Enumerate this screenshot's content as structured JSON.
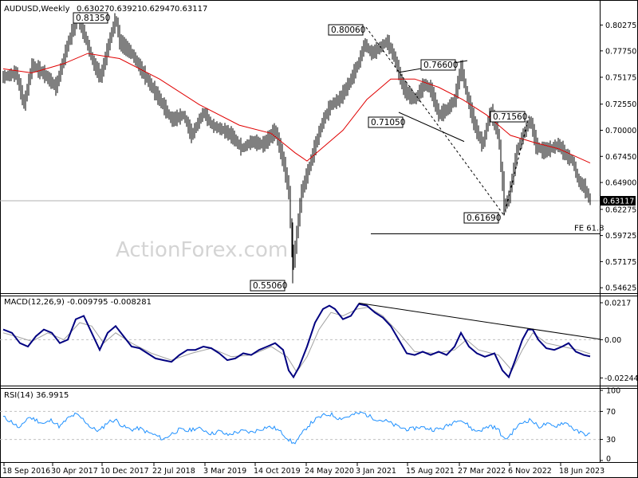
{
  "chart_data": [
    {
      "type": "candlestick",
      "title": "AUDUSD,Weekly",
      "ohlc_readout": [
        "0.63027",
        "0.63921",
        "0.62947",
        "0.63117"
      ],
      "y_ticks": [
        "0.80275",
        "0.77750",
        "0.75175",
        "0.72550",
        "0.70000",
        "0.67450",
        "0.64900",
        "0.62275",
        "0.59725",
        "0.57175",
        "0.54625"
      ],
      "ylim": [
        0.5425,
        0.8225
      ],
      "last_price": "0.63117",
      "last_price_value": 0.63117,
      "moving_average_color": "#e00000",
      "price_color": "#000000",
      "levels": [
        {
          "label": "0.81350",
          "value": 0.8135,
          "t": 90
        },
        {
          "label": "0.80060",
          "value": 0.8006,
          "t": 455
        },
        {
          "label": "0.76600",
          "value": 0.766,
          "t": 578
        },
        {
          "label": "0.71050",
          "value": 0.7105,
          "t": 510
        },
        {
          "label": "0.71560",
          "value": 0.7156,
          "t": 658
        },
        {
          "label": "0.61690",
          "value": 0.6169,
          "t": 632
        },
        {
          "label": "0.55060",
          "value": 0.5506,
          "t": 367
        }
      ],
      "fe_label": "FE 61.8",
      "fe_value": 0.5989,
      "price_path": [
        [
          4,
          0.752
        ],
        [
          20,
          0.756
        ],
        [
          30,
          0.725
        ],
        [
          40,
          0.764
        ],
        [
          55,
          0.755
        ],
        [
          70,
          0.742
        ],
        [
          85,
          0.785
        ],
        [
          97,
          0.811
        ],
        [
          107,
          0.79
        ],
        [
          117,
          0.765
        ],
        [
          126,
          0.752
        ],
        [
          138,
          0.79
        ],
        [
          145,
          0.81
        ],
        [
          150,
          0.786
        ],
        [
          165,
          0.775
        ],
        [
          180,
          0.755
        ],
        [
          200,
          0.73
        ],
        [
          215,
          0.71
        ],
        [
          230,
          0.715
        ],
        [
          240,
          0.695
        ],
        [
          255,
          0.718
        ],
        [
          265,
          0.705
        ],
        [
          280,
          0.7
        ],
        [
          290,
          0.695
        ],
        [
          303,
          0.682
        ],
        [
          315,
          0.689
        ],
        [
          330,
          0.686
        ],
        [
          345,
          0.7
        ],
        [
          355,
          0.67
        ],
        [
          362,
          0.64
        ],
        [
          367,
          0.565
        ],
        [
          372,
          0.6
        ],
        [
          378,
          0.64
        ],
        [
          386,
          0.66
        ],
        [
          395,
          0.685
        ],
        [
          405,
          0.71
        ],
        [
          415,
          0.725
        ],
        [
          425,
          0.73
        ],
        [
          437,
          0.745
        ],
        [
          450,
          0.767
        ],
        [
          457,
          0.785
        ],
        [
          465,
          0.775
        ],
        [
          475,
          0.78
        ],
        [
          485,
          0.787
        ],
        [
          495,
          0.77
        ],
        [
          505,
          0.742
        ],
        [
          512,
          0.735
        ],
        [
          520,
          0.73
        ],
        [
          532,
          0.745
        ],
        [
          540,
          0.74
        ],
        [
          550,
          0.715
        ],
        [
          560,
          0.72
        ],
        [
          570,
          0.73
        ],
        [
          578,
          0.762
        ],
        [
          585,
          0.735
        ],
        [
          595,
          0.705
        ],
        [
          605,
          0.685
        ],
        [
          615,
          0.72
        ],
        [
          625,
          0.695
        ],
        [
          632,
          0.625
        ],
        [
          638,
          0.635
        ],
        [
          648,
          0.68
        ],
        [
          658,
          0.7
        ],
        [
          665,
          0.71
        ],
        [
          672,
          0.685
        ],
        [
          680,
          0.68
        ],
        [
          690,
          0.682
        ],
        [
          700,
          0.686
        ],
        [
          710,
          0.675
        ],
        [
          718,
          0.67
        ],
        [
          725,
          0.65
        ],
        [
          732,
          0.645
        ],
        [
          740,
          0.631
        ]
      ],
      "ma_path": [
        [
          4,
          0.76
        ],
        [
          40,
          0.756
        ],
        [
          80,
          0.765
        ],
        [
          110,
          0.775
        ],
        [
          150,
          0.77
        ],
        [
          200,
          0.75
        ],
        [
          250,
          0.725
        ],
        [
          300,
          0.705
        ],
        [
          340,
          0.697
        ],
        [
          370,
          0.678
        ],
        [
          385,
          0.67
        ],
        [
          400,
          0.68
        ],
        [
          430,
          0.7
        ],
        [
          460,
          0.73
        ],
        [
          490,
          0.75
        ],
        [
          520,
          0.75
        ],
        [
          550,
          0.742
        ],
        [
          580,
          0.73
        ],
        [
          610,
          0.715
        ],
        [
          640,
          0.695
        ],
        [
          670,
          0.688
        ],
        [
          700,
          0.682
        ],
        [
          740,
          0.668
        ]
      ],
      "trendlines": [
        {
          "t1": 459,
          "v1": 0.8006,
          "t2": 632,
          "v2": 0.6169,
          "dashed": true
        },
        {
          "t1": 632,
          "v1": 0.6169,
          "t2": 664,
          "v2": 0.7156,
          "dashed": true
        },
        {
          "t1": 500,
          "v1": 0.7565,
          "t2": 586,
          "v2": 0.768,
          "dashed": false
        },
        {
          "t1": 500,
          "v1": 0.7175,
          "t2": 582,
          "v2": 0.689,
          "dashed": false
        }
      ],
      "watermark": "ActionForex.com"
    },
    {
      "type": "line",
      "title": "MACD(12,26,9) -0.009795 -0.008281",
      "y_ticks": [
        "0.0217",
        "0.00",
        "-0.022445"
      ],
      "ylim": [
        -0.026,
        0.0245
      ],
      "macd_color": "#000080",
      "signal_color": "#a0a0a0",
      "macd": [
        [
          4,
          0.006
        ],
        [
          15,
          0.004
        ],
        [
          25,
          -0.002
        ],
        [
          35,
          -0.004
        ],
        [
          45,
          0.002
        ],
        [
          55,
          0.006
        ],
        [
          65,
          0.004
        ],
        [
          75,
          -0.002
        ],
        [
          85,
          0.0
        ],
        [
          95,
          0.012
        ],
        [
          105,
          0.014
        ],
        [
          115,
          0.004
        ],
        [
          125,
          -0.006
        ],
        [
          135,
          0.004
        ],
        [
          145,
          0.008
        ],
        [
          155,
          0.002
        ],
        [
          165,
          -0.004
        ],
        [
          175,
          -0.005
        ],
        [
          185,
          -0.008
        ],
        [
          195,
          -0.011
        ],
        [
          205,
          -0.012
        ],
        [
          215,
          -0.013
        ],
        [
          225,
          -0.009
        ],
        [
          235,
          -0.006
        ],
        [
          245,
          -0.006
        ],
        [
          255,
          -0.004
        ],
        [
          265,
          -0.005
        ],
        [
          275,
          -0.008
        ],
        [
          285,
          -0.012
        ],
        [
          295,
          -0.011
        ],
        [
          305,
          -0.008
        ],
        [
          315,
          -0.009
        ],
        [
          325,
          -0.006
        ],
        [
          335,
          -0.004
        ],
        [
          345,
          -0.002
        ],
        [
          355,
          -0.006
        ],
        [
          362,
          -0.018
        ],
        [
          368,
          -0.022
        ],
        [
          375,
          -0.016
        ],
        [
          385,
          -0.004
        ],
        [
          395,
          0.01
        ],
        [
          405,
          0.018
        ],
        [
          413,
          0.02
        ],
        [
          420,
          0.018
        ],
        [
          430,
          0.012
        ],
        [
          440,
          0.014
        ],
        [
          450,
          0.021
        ],
        [
          460,
          0.02
        ],
        [
          470,
          0.016
        ],
        [
          480,
          0.013
        ],
        [
          490,
          0.008
        ],
        [
          500,
          0.0
        ],
        [
          510,
          -0.008
        ],
        [
          520,
          -0.009
        ],
        [
          530,
          -0.007
        ],
        [
          540,
          -0.009
        ],
        [
          550,
          -0.007
        ],
        [
          560,
          -0.009
        ],
        [
          570,
          -0.004
        ],
        [
          578,
          0.004
        ],
        [
          588,
          -0.004
        ],
        [
          598,
          -0.008
        ],
        [
          608,
          -0.01
        ],
        [
          620,
          -0.008
        ],
        [
          630,
          -0.018
        ],
        [
          638,
          -0.022
        ],
        [
          646,
          -0.012
        ],
        [
          655,
          0.0
        ],
        [
          662,
          0.006
        ],
        [
          668,
          0.006
        ],
        [
          675,
          0.0
        ],
        [
          685,
          -0.005
        ],
        [
          695,
          -0.006
        ],
        [
          705,
          -0.004
        ],
        [
          713,
          -0.002
        ],
        [
          722,
          -0.007
        ],
        [
          732,
          -0.009
        ],
        [
          740,
          -0.0098
        ]
      ],
      "signal": [
        [
          4,
          0.004
        ],
        [
          20,
          0.002
        ],
        [
          40,
          -0.001
        ],
        [
          60,
          0.004
        ],
        [
          80,
          0.0
        ],
        [
          100,
          0.01
        ],
        [
          115,
          0.008
        ],
        [
          130,
          -0.002
        ],
        [
          145,
          0.004
        ],
        [
          165,
          -0.002
        ],
        [
          190,
          -0.008
        ],
        [
          215,
          -0.012
        ],
        [
          240,
          -0.008
        ],
        [
          265,
          -0.005
        ],
        [
          290,
          -0.01
        ],
        [
          315,
          -0.009
        ],
        [
          340,
          -0.004
        ],
        [
          360,
          -0.01
        ],
        [
          372,
          -0.019
        ],
        [
          385,
          -0.01
        ],
        [
          400,
          0.006
        ],
        [
          415,
          0.016
        ],
        [
          430,
          0.014
        ],
        [
          448,
          0.018
        ],
        [
          462,
          0.019
        ],
        [
          480,
          0.014
        ],
        [
          500,
          0.004
        ],
        [
          520,
          -0.007
        ],
        [
          545,
          -0.008
        ],
        [
          570,
          -0.006
        ],
        [
          585,
          0.0
        ],
        [
          600,
          -0.006
        ],
        [
          625,
          -0.009
        ],
        [
          642,
          -0.018
        ],
        [
          655,
          -0.006
        ],
        [
          668,
          0.004
        ],
        [
          685,
          -0.002
        ],
        [
          705,
          -0.004
        ],
        [
          725,
          -0.006
        ],
        [
          740,
          -0.0083
        ]
      ],
      "trendline": {
        "t1": 450,
        "v1": 0.0215,
        "t2": 752,
        "v2": 0.0003
      }
    },
    {
      "type": "line",
      "title": "RSI(14) 36.9915",
      "y_ticks": [
        "100",
        "70",
        "30",
        "0"
      ],
      "ylim": [
        0,
        100
      ],
      "reference_levels": [
        70,
        30
      ],
      "color": "#1e90ff",
      "rsi": [
        [
          4,
          62
        ],
        [
          15,
          55
        ],
        [
          25,
          45
        ],
        [
          35,
          62
        ],
        [
          45,
          58
        ],
        [
          55,
          52
        ],
        [
          65,
          58
        ],
        [
          75,
          48
        ],
        [
          85,
          60
        ],
        [
          95,
          66
        ],
        [
          105,
          58
        ],
        [
          115,
          46
        ],
        [
          125,
          42
        ],
        [
          135,
          55
        ],
        [
          145,
          58
        ],
        [
          155,
          48
        ],
        [
          165,
          44
        ],
        [
          175,
          46
        ],
        [
          185,
          40
        ],
        [
          195,
          36
        ],
        [
          205,
          30
        ],
        [
          215,
          38
        ],
        [
          225,
          44
        ],
        [
          235,
          42
        ],
        [
          245,
          46
        ],
        [
          255,
          44
        ],
        [
          265,
          38
        ],
        [
          275,
          42
        ],
        [
          285,
          36
        ],
        [
          295,
          40
        ],
        [
          305,
          42
        ],
        [
          315,
          40
        ],
        [
          325,
          44
        ],
        [
          335,
          48
        ],
        [
          345,
          46
        ],
        [
          355,
          38
        ],
        [
          362,
          30
        ],
        [
          368,
          24
        ],
        [
          375,
          32
        ],
        [
          385,
          48
        ],
        [
          395,
          58
        ],
        [
          405,
          64
        ],
        [
          415,
          66
        ],
        [
          425,
          60
        ],
        [
          435,
          62
        ],
        [
          445,
          66
        ],
        [
          455,
          68
        ],
        [
          465,
          62
        ],
        [
          475,
          58
        ],
        [
          485,
          56
        ],
        [
          495,
          50
        ],
        [
          505,
          46
        ],
        [
          515,
          44
        ],
        [
          525,
          48
        ],
        [
          535,
          46
        ],
        [
          545,
          44
        ],
        [
          555,
          46
        ],
        [
          565,
          52
        ],
        [
          575,
          60
        ],
        [
          585,
          52
        ],
        [
          595,
          42
        ],
        [
          605,
          44
        ],
        [
          615,
          50
        ],
        [
          625,
          44
        ],
        [
          632,
          30
        ],
        [
          638,
          34
        ],
        [
          648,
          48
        ],
        [
          658,
          56
        ],
        [
          666,
          58
        ],
        [
          675,
          48
        ],
        [
          685,
          52
        ],
        [
          695,
          48
        ],
        [
          705,
          54
        ],
        [
          713,
          52
        ],
        [
          722,
          42
        ],
        [
          732,
          38
        ],
        [
          740,
          37
        ]
      ]
    }
  ],
  "x_axis": {
    "ticks": [
      "18 Sep 2016",
      "30 Apr 2017",
      "10 Dec 2017",
      "22 Jul 2018",
      "3 Mar 2019",
      "14 Oct 2019",
      "24 May 2020",
      "3 Jan 2021",
      "15 Aug 2021",
      "27 Mar 2022",
      "6 Nov 2022",
      "18 Jun 2023"
    ]
  }
}
